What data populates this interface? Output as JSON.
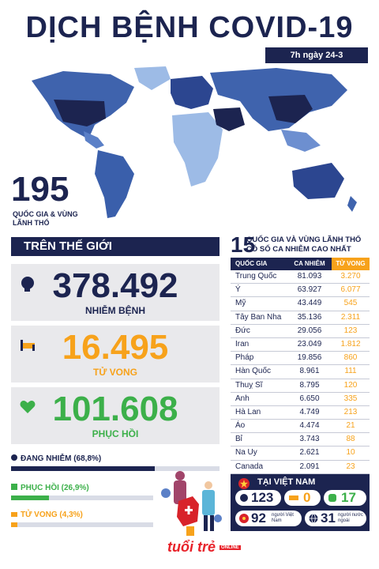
{
  "title": "DỊCH BỆNH COVID-19",
  "date": "7h ngày 24-3",
  "countries": {
    "count": "195",
    "label": "QUỐC GIA & VÙNG LÃNH THỔ"
  },
  "world": {
    "header": "TRÊN THẾ GIỚI",
    "infected": {
      "value": "378.492",
      "label": "NHIỄM BỆNH"
    },
    "deaths": {
      "value": "16.495",
      "label": "TỬ VONG"
    },
    "recovered": {
      "value": "101.608",
      "label": "PHỤC HỒI"
    }
  },
  "bars": {
    "active": {
      "label": "ĐANG NHIỄM (68,8%)",
      "percent": 68.8
    },
    "recovered": {
      "label": "PHỤC HỒI (26,9%)",
      "percent": 26.9
    },
    "deaths": {
      "label": "TỬ VONG (4,3%)",
      "percent": 4.3
    }
  },
  "top15": {
    "num": "15",
    "title": "QUỐC GIA VÀ VÙNG LÃNH THỔ CÓ SỐ CA NHIỄM CAO NHẤT",
    "headers": [
      "QUỐC GIA",
      "CA NHIỄM",
      "TỬ VONG"
    ],
    "rows": [
      [
        "Trung Quốc",
        "81.093",
        "3.270"
      ],
      [
        "Ý",
        "63.927",
        "6.077"
      ],
      [
        "Mỹ",
        "43.449",
        "545"
      ],
      [
        "Tây Ban Nha",
        "35.136",
        "2.311"
      ],
      [
        "Đức",
        "29.056",
        "123"
      ],
      [
        "Iran",
        "23.049",
        "1.812"
      ],
      [
        "Pháp",
        "19.856",
        "860"
      ],
      [
        "Hàn Quốc",
        "8.961",
        "111"
      ],
      [
        "Thuỵ Sĩ",
        "8.795",
        "120"
      ],
      [
        "Anh",
        "6.650",
        "335"
      ],
      [
        "Hà Lan",
        "4.749",
        "213"
      ],
      [
        "Áo",
        "4.474",
        "21"
      ],
      [
        "Bỉ",
        "3.743",
        "88"
      ],
      [
        "Na Uy",
        "2.621",
        "10"
      ],
      [
        "Canada",
        "2.091",
        "23"
      ]
    ]
  },
  "vietnam": {
    "title": "TẠI VIỆT NAM",
    "infected": "123",
    "deaths": "0",
    "recovered": "17",
    "vn_people": {
      "value": "92",
      "label": "người Việt Nam"
    },
    "foreigners": {
      "value": "31",
      "label": "người nước ngoài"
    }
  },
  "logo": "tuổi trẻ",
  "logo_sub": "ONLINE",
  "colors": {
    "navy": "#1c2450",
    "orange": "#f7a21b",
    "green": "#3cb04a",
    "red": "#d8232a"
  }
}
